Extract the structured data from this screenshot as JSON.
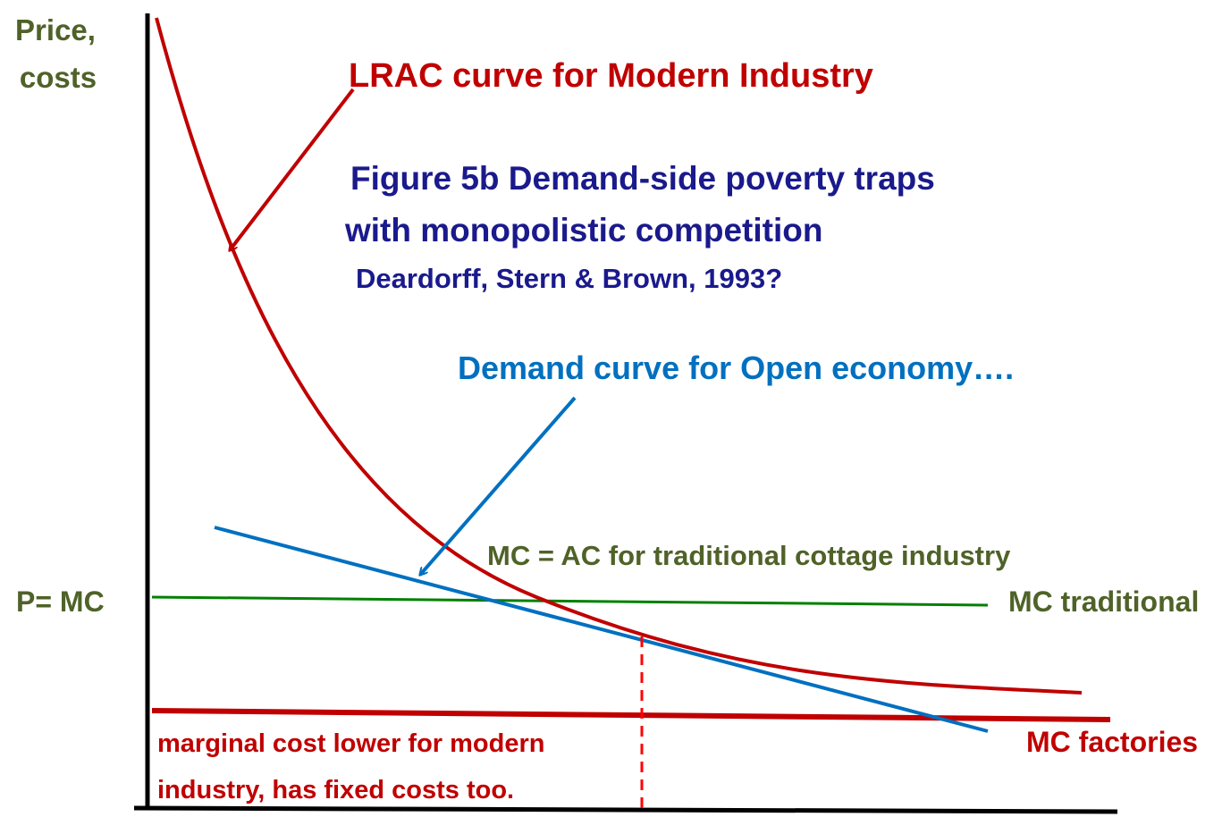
{
  "axis_label": [
    "Price,",
    "costs"
  ],
  "lrac_label": "LRAC curve for Modern Industry",
  "title": [
    "Figure 5b Demand-side poverty traps",
    "with monopolistic competition"
  ],
  "citation": "Deardorff, Stern & Brown, 1993?",
  "demand_label": "Demand curve for Open economy….",
  "traditional_label": "MC = AC for traditional cottage industry",
  "price_label": "P= MC",
  "mc_traditional_label": "MC traditional",
  "mc_factories_label": "MC factories",
  "note": [
    "marginal cost lower for modern",
    "industry, has fixed costs too."
  ]
}
